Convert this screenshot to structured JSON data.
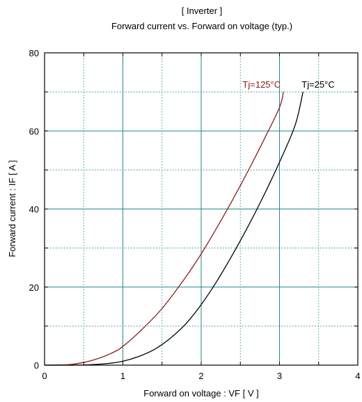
{
  "chart_data": {
    "type": "line",
    "title": "[ Inverter ]",
    "subtitle": "Forward current  vs.  Forward on voltage  (typ.)",
    "xlabel": "Forward on voltage  :  VF  [ V ]",
    "ylabel": "Forward current  :  IF  [ A ]",
    "xlim": [
      0,
      4
    ],
    "ylim": [
      0,
      80
    ],
    "x_ticks": [
      "0",
      "1",
      "2",
      "3",
      "4"
    ],
    "y_ticks": [
      "0",
      "20",
      "40",
      "60",
      "80"
    ],
    "grid": "major solid, minor dotted",
    "series": [
      {
        "name": "Tj=125°C",
        "color": "#8b1a1a",
        "x": [
          0,
          0.3,
          0.5,
          0.7,
          0.9,
          1.0,
          1.2,
          1.5,
          1.8,
          2.0,
          2.2,
          2.4,
          2.6,
          2.8,
          3.0,
          3.05
        ],
        "y": [
          0,
          0.1,
          0.7,
          1.8,
          3.5,
          4.8,
          8.3,
          14.5,
          22.5,
          28.5,
          35.2,
          42.3,
          49.8,
          57.7,
          66.0,
          70
        ]
      },
      {
        "name": "Tj=25°C",
        "color": "#000000",
        "x": [
          0,
          0.5,
          0.8,
          1.0,
          1.2,
          1.4,
          1.6,
          1.8,
          2.0,
          2.2,
          2.4,
          2.6,
          2.8,
          3.0,
          3.2,
          3.3
        ],
        "y": [
          0,
          0.05,
          0.4,
          1.0,
          2.2,
          4.0,
          6.8,
          10.5,
          15.5,
          21.5,
          28.3,
          35.6,
          43.5,
          52.0,
          61.5,
          70
        ]
      }
    ]
  }
}
